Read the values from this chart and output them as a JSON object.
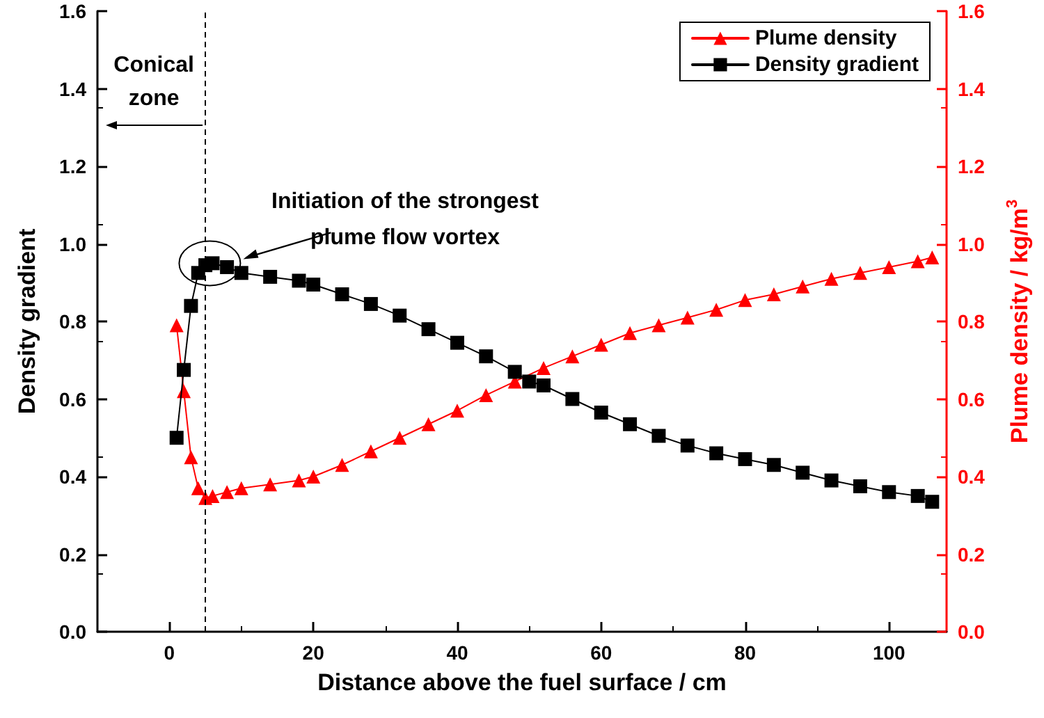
{
  "chart_data": {
    "type": "line",
    "xlabel": "Distance above the fuel surface / cm",
    "ylabel": "Density gradient",
    "y2label": "Plume density / kg/m$^{3}$",
    "xlim": [
      -10,
      108
    ],
    "xticks": [
      0,
      20,
      40,
      60,
      80,
      100
    ],
    "ylim": [
      0,
      1.6
    ],
    "yticks": [
      {
        "value": 0,
        "label": "0.0"
      },
      0.2,
      0.4,
      0.6,
      0.8,
      {
        "value": 1,
        "label": "1.0"
      },
      1.2,
      1.4,
      1.6
    ],
    "y2lim": [
      0,
      1.6
    ],
    "y2ticks": [
      {
        "value": 0,
        "label": "0.0"
      },
      0.2,
      0.4,
      0.6,
      0.8,
      {
        "value": 1,
        "label": "1.0"
      },
      1.2,
      1.4,
      1.6
    ],
    "grid": false,
    "legend": "top right",
    "line_style": "solid",
    "annotations": [
      "Conical zone",
      "Initiation of the strongest plume flow vortex"
    ],
    "ref_lines": [
      {
        "axis": "x",
        "value": 5,
        "label": null,
        "color": "#000000",
        "line_style": "dashed"
      }
    ],
    "series": [
      {
        "name": "Plume density",
        "color": "#ff0000",
        "marker": "triangle",
        "axis": "y2",
        "x": [
          1,
          2,
          3,
          4,
          5,
          6,
          8,
          10,
          14,
          18,
          20,
          24,
          28,
          32,
          36,
          40,
          44,
          48,
          52,
          56,
          60,
          64,
          68,
          72,
          76,
          80,
          84,
          88,
          92,
          96,
          100,
          104,
          106
        ],
        "values": [
          0.79,
          0.62,
          0.45,
          0.37,
          0.345,
          0.35,
          0.36,
          0.37,
          0.38,
          0.39,
          0.4,
          0.43,
          0.465,
          0.5,
          0.535,
          0.57,
          0.61,
          0.645,
          0.68,
          0.71,
          0.74,
          0.77,
          0.79,
          0.81,
          0.83,
          0.855,
          0.87,
          0.89,
          0.91,
          0.925,
          0.94,
          0.955,
          0.965
        ]
      },
      {
        "name": "Density gradient",
        "color": "#000000",
        "marker": "square",
        "x": [
          1,
          2,
          3,
          4,
          5,
          6,
          8,
          10,
          14,
          18,
          20,
          24,
          28,
          32,
          36,
          40,
          44,
          48,
          50,
          52,
          56,
          60,
          64,
          68,
          72,
          76,
          80,
          84,
          88,
          92,
          96,
          100,
          104,
          106
        ],
        "values": [
          0.5,
          0.675,
          0.84,
          0.925,
          0.945,
          0.95,
          0.94,
          0.925,
          0.915,
          0.905,
          0.895,
          0.87,
          0.845,
          0.815,
          0.78,
          0.745,
          0.71,
          0.67,
          0.645,
          0.635,
          0.6,
          0.565,
          0.535,
          0.505,
          0.48,
          0.46,
          0.445,
          0.43,
          0.41,
          0.39,
          0.375,
          0.36,
          0.35,
          0.335
        ]
      }
    ]
  }
}
